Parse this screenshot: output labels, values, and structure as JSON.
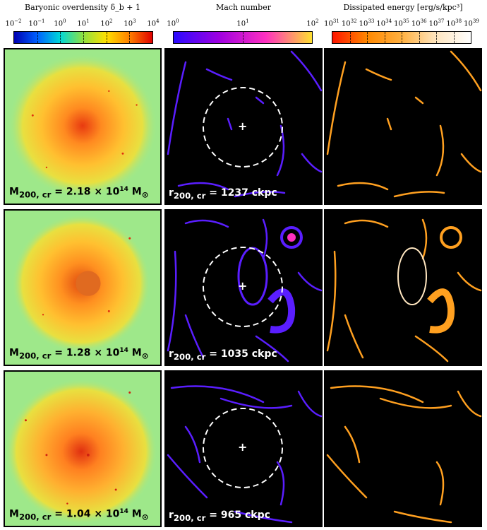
{
  "colorbars": [
    {
      "title": "Baryonic overdensity δ_b + 1",
      "ticks": [
        [
          "10",
          "−2"
        ],
        [
          "10",
          "−1"
        ],
        [
          "10",
          "0"
        ],
        [
          "10",
          "1"
        ],
        [
          "10",
          "2"
        ],
        [
          "10",
          "3"
        ],
        [
          "10",
          "4"
        ]
      ],
      "colors": [
        "#0000b0",
        "#0060ff",
        "#00d8d8",
        "#90e040",
        "#ffe000",
        "#ff8000",
        "#e00000"
      ]
    },
    {
      "title": "Mach number",
      "ticks": [
        [
          "10",
          "0"
        ],
        [
          "10",
          "1"
        ],
        [
          "10",
          "2"
        ]
      ],
      "colors": [
        "#2a0aff",
        "#a000e0",
        "#ff30c0",
        "#ffe030"
      ]
    },
    {
      "title": "Dissipated energy [erg/s/kpc³]",
      "ticks": [
        [
          "10",
          "31"
        ],
        [
          "10",
          "32"
        ],
        [
          "10",
          "33"
        ],
        [
          "10",
          "34"
        ],
        [
          "10",
          "35"
        ],
        [
          "10",
          "36"
        ],
        [
          "10",
          "37"
        ],
        [
          "10",
          "38"
        ],
        [
          "10",
          "39"
        ]
      ],
      "colors": [
        "#ff1500",
        "#ff8800",
        "#ffb040",
        "#ffe6c0",
        "#ffffff"
      ]
    }
  ],
  "rows": [
    {
      "mass_label": [
        "M",
        "200, cr",
        " = 2.18 × 10",
        "14",
        " M",
        "⊙"
      ],
      "radius_label": [
        "r",
        "200, cr",
        " = 1237 ckpc"
      ]
    },
    {
      "mass_label": [
        "M",
        "200, cr",
        " = 1.28 × 10",
        "14",
        " M",
        "⊙"
      ],
      "radius_label": [
        "r",
        "200, cr",
        " = 1035 ckpc"
      ]
    },
    {
      "mass_label": [
        "M",
        "200, cr",
        " = 1.04 × 10",
        "14",
        " M",
        "⊙"
      ],
      "radius_label": [
        "r",
        "200, cr",
        " = 965 ckpc"
      ]
    }
  ],
  "marker": "+",
  "colors": {
    "density_bg": "#9ee88a",
    "mach_shock": "#5a1eff",
    "energy_shock": "#ffa020",
    "panel_bg": "#000000"
  }
}
